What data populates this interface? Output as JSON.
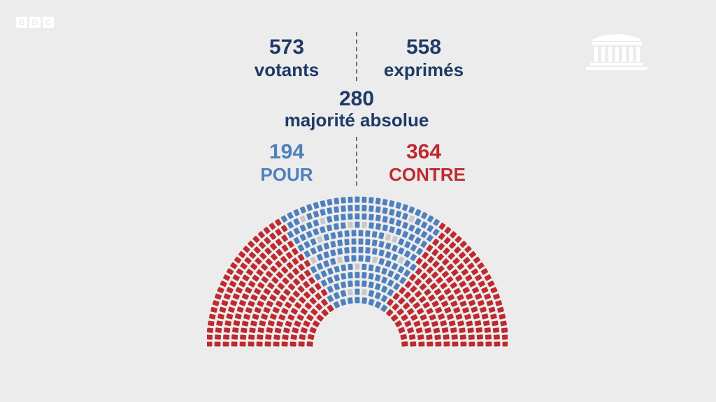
{
  "broadcaster": {
    "letters": [
      "B",
      "B",
      "C"
    ]
  },
  "icons": {
    "broadcaster_logo": "bbc-logo",
    "assembly": "assemblee-nationale-building-icon"
  },
  "stats": {
    "votants": {
      "value": "573",
      "label": "votants"
    },
    "exprimes": {
      "value": "558",
      "label": "exprimés"
    },
    "majorite": {
      "value": "280",
      "label": "majorité absolue"
    },
    "pour": {
      "value": "194",
      "label": "POUR"
    },
    "contre": {
      "value": "364",
      "label": "CONTRE"
    }
  },
  "colors": {
    "background": "#ececec",
    "navy": "#1f3a66",
    "pour": "#4f80bd",
    "contre": "#bf2a2f",
    "abstention": "#c8c8c8"
  },
  "chart_data": {
    "type": "hemicycle",
    "series": [
      {
        "name": "POUR",
        "value": 194
      },
      {
        "name": "CONTRE",
        "value": 364
      }
    ],
    "total_votants": 573,
    "total_exprimes": 558,
    "majorite_absolue": 280
  }
}
